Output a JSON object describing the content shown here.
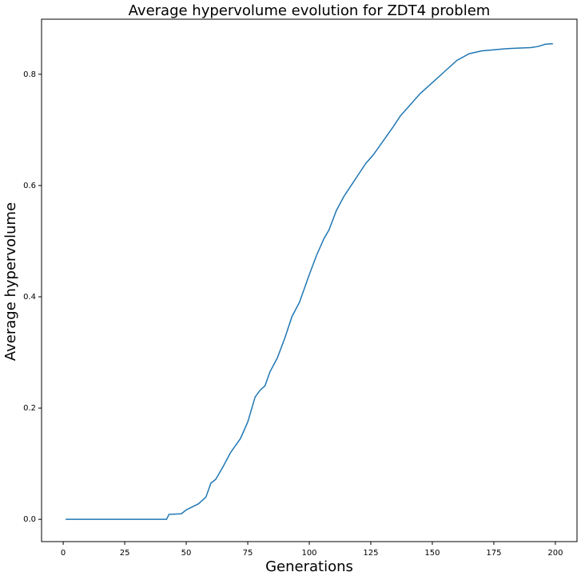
{
  "chart_data": {
    "type": "line",
    "title": "Average hypervolume evolution for ZDT4 problem",
    "x_label": "Generations",
    "y_label": "Average hypervolume",
    "x": [
      1,
      42,
      43,
      48,
      50,
      55,
      58,
      60,
      62,
      65,
      68,
      72,
      75,
      78,
      80,
      82,
      84,
      87,
      90,
      93,
      96,
      98,
      100,
      103,
      106,
      108,
      111,
      114,
      117,
      120,
      123,
      126,
      130,
      134,
      137,
      140,
      145,
      150,
      155,
      160,
      165,
      170,
      175,
      180,
      185,
      190,
      193,
      196,
      199
    ],
    "series": [
      {
        "color": "#1f77b4",
        "values": [
          0,
          0,
          0.009,
          0.01,
          0.017,
          0.028,
          0.04,
          0.065,
          0.072,
          0.095,
          0.12,
          0.145,
          0.175,
          0.22,
          0.232,
          0.24,
          0.265,
          0.29,
          0.325,
          0.365,
          0.39,
          0.415,
          0.44,
          0.475,
          0.505,
          0.52,
          0.555,
          0.58,
          0.6,
          0.62,
          0.64,
          0.655,
          0.68,
          0.705,
          0.725,
          0.74,
          0.765,
          0.785,
          0.805,
          0.825,
          0.837,
          0.842,
          0.844,
          0.846,
          0.847,
          0.848,
          0.85,
          0.854,
          0.855
        ]
      }
    ],
    "xlim": [
      -8.8,
      208.8
    ],
    "ylim": [
      -0.04,
      0.899
    ],
    "xticks": [
      0,
      25,
      50,
      75,
      100,
      125,
      150,
      175,
      200
    ],
    "yticks": [
      {
        "value": 0,
        "label": "0.0"
      },
      {
        "value": 0.2,
        "label": "0.2"
      },
      {
        "value": 0.4,
        "label": "0.4"
      },
      {
        "value": 0.6,
        "label": "0.6"
      },
      {
        "value": 0.8,
        "label": "0.8"
      }
    ]
  }
}
